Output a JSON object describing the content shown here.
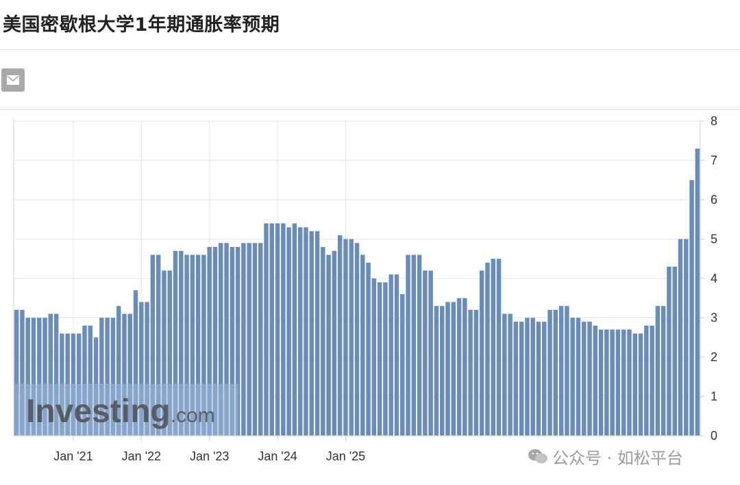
{
  "header": {
    "title": "美国密歇根大学1年期通胀率预期"
  },
  "toolbar": {
    "email_icon": "mail-icon"
  },
  "colors": {
    "bar": "#6a8cbb",
    "bar_edge": "#4f6f9c",
    "grid": "#e6e6e6",
    "text": "#333333",
    "logo_box": "#9fb8d8"
  },
  "watermarks": {
    "investing": "Investing",
    "investing_suffix": ".com",
    "wechat": "公众号 · 如松平台"
  },
  "chart_data": {
    "type": "bar",
    "title": "",
    "xlabel": "",
    "ylabel": "",
    "ylim": [
      0,
      8
    ],
    "y_ticks": [
      "0",
      "1",
      "2",
      "3",
      "4",
      "5",
      "6",
      "7",
      "8"
    ],
    "x_tick_labels": [
      "Jan '21",
      "Jan '22",
      "Jan '23",
      "Jan '24",
      "Jan '25"
    ],
    "y_axis_position": "right",
    "grid": true,
    "start": "2020-03",
    "values": [
      3.2,
      3.2,
      3.0,
      3.0,
      3.0,
      3.0,
      3.1,
      3.1,
      2.6,
      2.6,
      2.6,
      2.6,
      2.8,
      2.8,
      2.5,
      3.0,
      3.0,
      3.0,
      3.3,
      3.1,
      3.1,
      3.7,
      3.4,
      3.4,
      4.6,
      4.6,
      4.2,
      4.2,
      4.7,
      4.7,
      4.6,
      4.6,
      4.6,
      4.6,
      4.8,
      4.8,
      4.9,
      4.9,
      4.8,
      4.8,
      4.9,
      4.9,
      4.9,
      4.9,
      5.4,
      5.4,
      5.4,
      5.4,
      5.3,
      5.4,
      5.3,
      5.3,
      5.2,
      5.2,
      4.8,
      4.6,
      4.7,
      5.1,
      5.0,
      5.0,
      4.9,
      4.6,
      4.4,
      4.0,
      3.9,
      3.9,
      4.1,
      4.1,
      3.6,
      4.6,
      4.6,
      4.6,
      4.2,
      4.2,
      3.3,
      3.3,
      3.4,
      3.4,
      3.5,
      3.5,
      3.2,
      3.2,
      4.2,
      4.4,
      4.5,
      4.5,
      3.1,
      3.1,
      2.9,
      2.9,
      3.0,
      3.0,
      2.9,
      2.9,
      3.2,
      3.2,
      3.3,
      3.3,
      3.0,
      3.0,
      2.9,
      2.9,
      2.8,
      2.7,
      2.7,
      2.7,
      2.7,
      2.7,
      2.7,
      2.6,
      2.6,
      2.8,
      2.8,
      3.3,
      3.3,
      4.3,
      4.3,
      5.0,
      5.0,
      6.5,
      7.3
    ]
  }
}
